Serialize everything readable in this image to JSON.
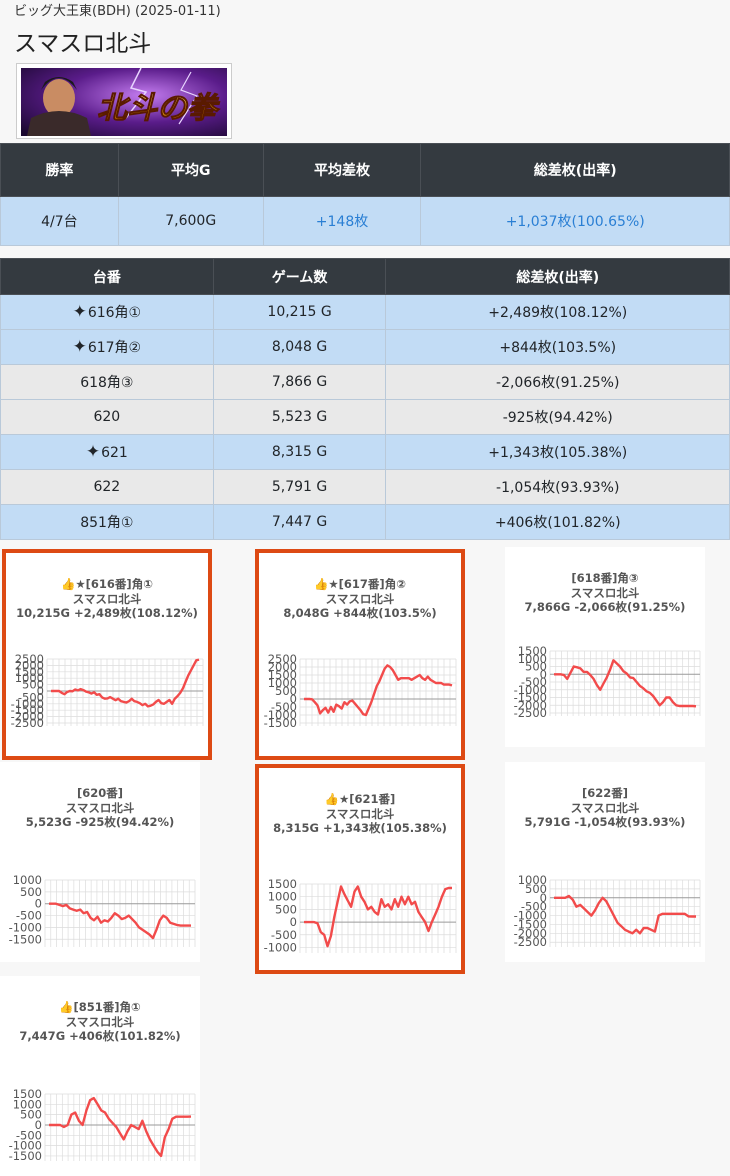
{
  "store_line": "ビッグ大王東(BDH) (2025-01-11)",
  "machine_name": "スマスロ北斗",
  "banner": {
    "logo_text": "北斗の拳"
  },
  "summary": {
    "headers": [
      "勝率",
      "平均G",
      "平均差枚",
      "総差枚(出率)"
    ],
    "values": [
      "4/7台",
      "7,600G",
      "+148枚",
      "+1,037枚(100.65%)"
    ]
  },
  "machines": {
    "headers": [
      "台番",
      "ゲーム数",
      "総差枚(出率)"
    ],
    "rows": [
      {
        "star": true,
        "id": "616角①",
        "games": "10,215 G",
        "diff": "+2,489枚(108.12%)",
        "win": true
      },
      {
        "star": true,
        "id": "617角②",
        "games": "8,048 G",
        "diff": "+844枚(103.5%)",
        "win": true
      },
      {
        "star": false,
        "id": "618角③",
        "games": "7,866 G",
        "diff": "-2,066枚(91.25%)",
        "win": false
      },
      {
        "star": false,
        "id": "620",
        "games": "5,523 G",
        "diff": "-925枚(94.42%)",
        "win": false
      },
      {
        "star": true,
        "id": "621",
        "games": "8,315 G",
        "diff": "+1,343枚(105.38%)",
        "win": true
      },
      {
        "star": false,
        "id": "622",
        "games": "5,791 G",
        "diff": "-1,054枚(93.93%)",
        "win": false
      },
      {
        "star": false,
        "id": "851角①",
        "games": "7,447 G",
        "diff": "+406枚(101.82%)",
        "win": true
      }
    ]
  },
  "charts": [
    {
      "line1": "👍★[616番]角①",
      "line2": "スマスロ北斗",
      "line3": "10,215G +2,489枚(108.12%)",
      "highlight": true,
      "chart_data": {
        "type": "line",
        "y_ticks": [
          "2500",
          "2000",
          "1500",
          "1000",
          "500",
          "0",
          "-500",
          "-1000",
          "-1500",
          "-2000",
          "-2500"
        ],
        "ylim": [
          -2500,
          2500
        ],
        "color": "#f24b4b",
        "values": [
          0,
          0,
          0,
          0,
          -150,
          -250,
          -80,
          0,
          -20,
          120,
          50,
          150,
          70,
          -50,
          -100,
          -200,
          -100,
          -300,
          -250,
          -500,
          -600,
          -580,
          -480,
          -600,
          -720,
          -600,
          -800,
          -850,
          -900,
          -800,
          -600,
          -800,
          -850,
          -950,
          -1100,
          -1000,
          -1200,
          -1150,
          -1050,
          -850,
          -700,
          -950,
          -1000,
          -850,
          -700,
          -1000,
          -600,
          -400,
          -150,
          200,
          700,
          1200,
          1600,
          2000,
          2400,
          2450
        ]
      }
    },
    {
      "line1": "👍★[617番]角②",
      "line2": "スマスロ北斗",
      "line3": "8,048G +844枚(103.5%)",
      "highlight": true,
      "chart_data": {
        "type": "line",
        "y_ticks": [
          "2500",
          "2000",
          "1500",
          "1000",
          "500",
          "0",
          "-500",
          "-1000",
          "-1500"
        ],
        "ylim": [
          -1500,
          2500
        ],
        "color": "#f24b4b",
        "values": [
          0,
          0,
          0,
          -20,
          -200,
          -400,
          -900,
          -700,
          -550,
          -850,
          -500,
          -800,
          -350,
          -450,
          -600,
          -200,
          -350,
          -150,
          -100,
          -300,
          -500,
          -700,
          -950,
          -1000,
          -600,
          -200,
          300,
          800,
          1100,
          1500,
          1900,
          2100,
          2000,
          1800,
          1500,
          1200,
          1300,
          1300,
          1300,
          1300,
          1200,
          1300,
          1400,
          1500,
          1300,
          1200,
          1400,
          1200,
          1100,
          1000,
          1000,
          1000,
          900,
          900,
          900,
          850
        ]
      }
    },
    {
      "line1": "[618番]角③",
      "line2": "スマスロ北斗",
      "line3": "7,866G -2,066枚(91.25%)",
      "highlight": false,
      "chart_data": {
        "type": "line",
        "y_ticks": [
          "1500",
          "1000",
          "500",
          "0",
          "-500",
          "-1000",
          "-1500",
          "-2000",
          "-2500"
        ],
        "ylim": [
          -2500,
          1500
        ],
        "color": "#f24b4b",
        "values": [
          0,
          0,
          0,
          -50,
          -300,
          100,
          500,
          450,
          380,
          150,
          150,
          -50,
          -300,
          -700,
          -1000,
          -600,
          -200,
          300,
          900,
          700,
          500,
          200,
          50,
          -200,
          -250,
          -500,
          -750,
          -900,
          -1100,
          -1200,
          -1400,
          -1700,
          -2000,
          -1800,
          -1500,
          -1500,
          -1800,
          -2000,
          -2050,
          -2050,
          -2050,
          -2050,
          -2050,
          -2066
        ]
      }
    },
    {
      "line1": "[620番]",
      "line2": "スマスロ北斗",
      "line3": "5,523G -925枚(94.42%)",
      "highlight": false,
      "chart_data": {
        "type": "line",
        "y_ticks": [
          "1000",
          "500",
          "0",
          "-500",
          "-1000",
          "-1500"
        ],
        "ylim": [
          -1700,
          1000
        ],
        "color": "#f24b4b",
        "values": [
          0,
          0,
          0,
          -50,
          -100,
          -50,
          -200,
          -250,
          -300,
          -250,
          -400,
          -350,
          -600,
          -700,
          -550,
          -800,
          -700,
          -750,
          -600,
          -400,
          -500,
          -650,
          -600,
          -500,
          -650,
          -800,
          -1000,
          -1100,
          -1200,
          -1300,
          -1450,
          -1100,
          -700,
          -500,
          -600,
          -800,
          -850,
          -900,
          -925,
          -925,
          -925,
          -925
        ]
      }
    },
    {
      "line1": "👍★[621番]",
      "line2": "スマスロ北斗",
      "line3": "8,315G +1,343枚(105.38%)",
      "highlight": true,
      "chart_data": {
        "type": "line",
        "y_ticks": [
          "1500",
          "1000",
          "500",
          "0",
          "-500",
          "-1000"
        ],
        "ylim": [
          -1100,
          1500
        ],
        "color": "#f24b4b",
        "values": [
          0,
          0,
          0,
          0,
          -50,
          -400,
          -500,
          -950,
          -550,
          200,
          800,
          1400,
          1100,
          850,
          600,
          1200,
          1400,
          1000,
          800,
          500,
          600,
          400,
          300,
          900,
          600,
          700,
          500,
          900,
          600,
          1000,
          700,
          1000,
          700,
          800,
          400,
          200,
          0,
          -350,
          0,
          300,
          600,
          1000,
          1300,
          1343,
          1343
        ]
      }
    },
    {
      "line1": "[622番]",
      "line2": "スマスロ北斗",
      "line3": "5,791G -1,054枚(93.93%)",
      "highlight": false,
      "chart_data": {
        "type": "line",
        "y_ticks": [
          "1000",
          "500",
          "0",
          "-500",
          "-1000",
          "-1500",
          "-2000",
          "-2500"
        ],
        "ylim": [
          -2600,
          1000
        ],
        "color": "#f24b4b",
        "values": [
          0,
          0,
          0,
          0,
          100,
          -100,
          -500,
          -400,
          -600,
          -800,
          -1000,
          -700,
          -300,
          0,
          -200,
          -600,
          -1000,
          -1400,
          -1600,
          -1800,
          -1900,
          -2000,
          -1800,
          -2000,
          -1700,
          -1700,
          -1800,
          -1900,
          -1000,
          -900,
          -900,
          -900,
          -900,
          -900,
          -900,
          -900,
          -1050,
          -1054,
          -1054
        ]
      }
    },
    {
      "line1": "👍[851番]角①",
      "line2": "スマスロ北斗",
      "line3": "7,447G +406枚(101.82%)",
      "highlight": false,
      "chart_data": {
        "type": "line",
        "y_ticks": [
          "1500",
          "1000",
          "500",
          "0",
          "-500",
          "-1000",
          "-1500"
        ],
        "ylim": [
          -1600,
          1500
        ],
        "color": "#f24b4b",
        "values": [
          0,
          0,
          0,
          0,
          -100,
          0,
          500,
          600,
          200,
          0,
          700,
          1200,
          1300,
          1000,
          700,
          600,
          300,
          100,
          -100,
          -400,
          -700,
          -300,
          0,
          -100,
          -200,
          200,
          -300,
          -700,
          -1000,
          -1300,
          -1500,
          -600,
          -200,
          300,
          400,
          400,
          400,
          400,
          406
        ]
      }
    }
  ]
}
